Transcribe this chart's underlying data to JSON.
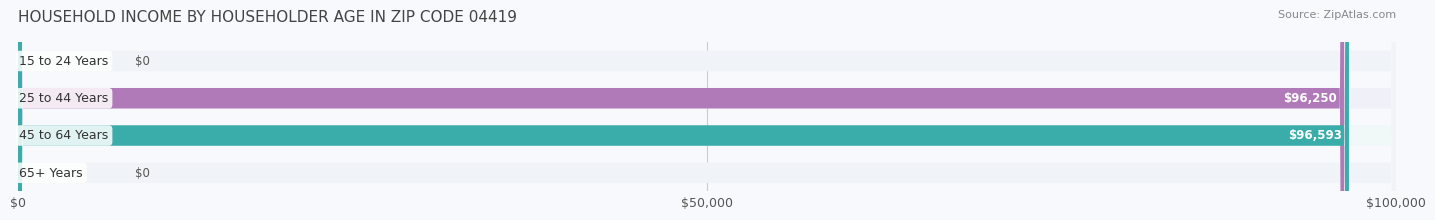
{
  "title": "HOUSEHOLD INCOME BY HOUSEHOLDER AGE IN ZIP CODE 04419",
  "source": "Source: ZipAtlas.com",
  "categories": [
    "15 to 24 Years",
    "25 to 44 Years",
    "45 to 64 Years",
    "65+ Years"
  ],
  "values": [
    0,
    96250,
    96593,
    0
  ],
  "bar_colors": [
    "#a8b8e8",
    "#b07ab8",
    "#3aacaa",
    "#a8b8e8"
  ],
  "bar_bg_colors": [
    "#f0f4f8",
    "#f0f0f8",
    "#f0f8f8",
    "#f0f4f8"
  ],
  "label_colors": [
    "#555555",
    "#ffffff",
    "#ffffff",
    "#555555"
  ],
  "value_labels": [
    "$0",
    "$96,250",
    "$96,593",
    "$0"
  ],
  "xlim": [
    0,
    100000
  ],
  "xtick_values": [
    0,
    50000,
    100000
  ],
  "xtick_labels": [
    "$0",
    "$50,000",
    "$100,000"
  ],
  "title_fontsize": 11,
  "source_fontsize": 8,
  "label_fontsize": 9,
  "value_fontsize": 8.5,
  "background_color": "#f7f9fc"
}
